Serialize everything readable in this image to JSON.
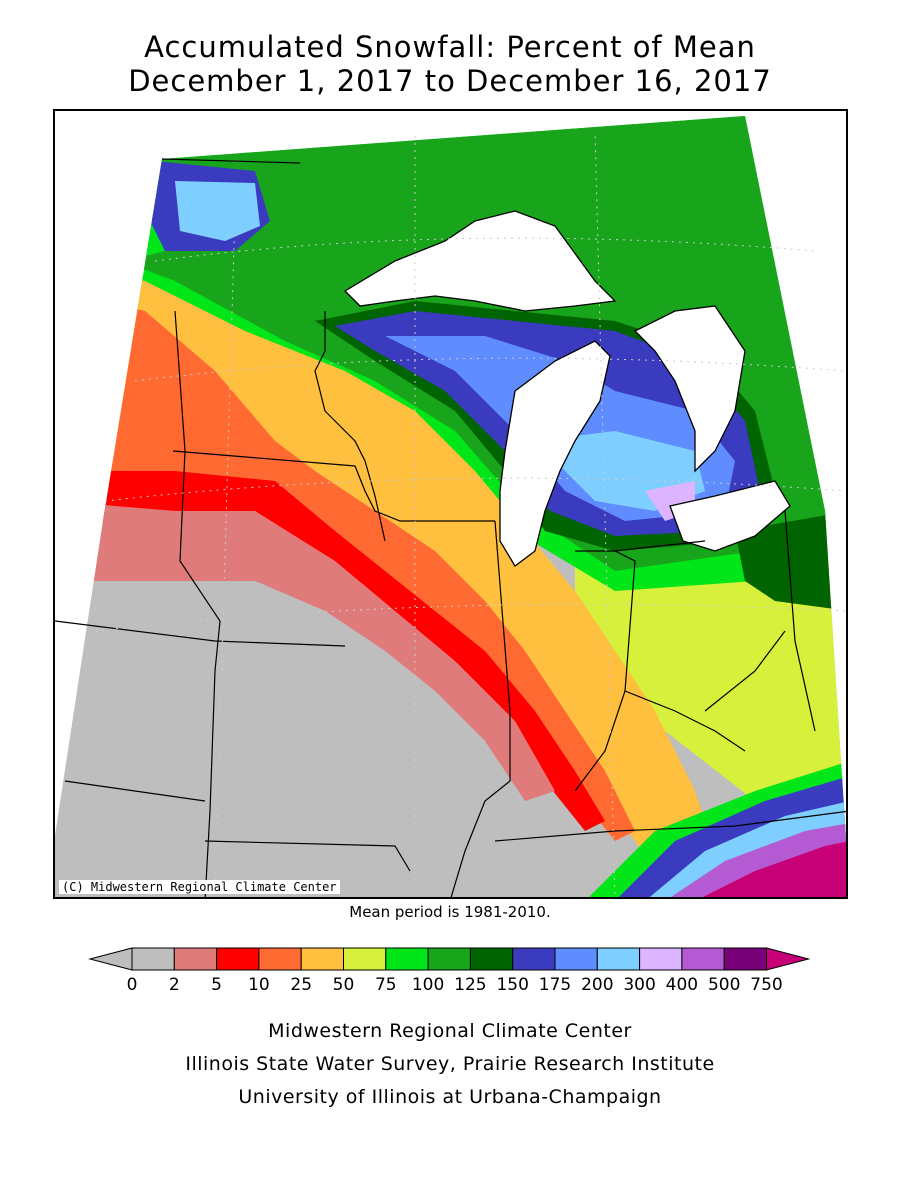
{
  "title": {
    "line1": "Accumulated Snowfall: Percent of Mean",
    "line2": "December 1, 2017 to December 16, 2017"
  },
  "map": {
    "copyright": "(C) Midwestern Regional Climate Center",
    "mean_note": "Mean period is 1981-2010."
  },
  "legend": {
    "bins": [
      {
        "label": "0",
        "color": "#bebebe"
      },
      {
        "label": "2",
        "color": "#e07b7b"
      },
      {
        "label": "5",
        "color": "#ff0000"
      },
      {
        "label": "10",
        "color": "#ff6a33"
      },
      {
        "label": "25",
        "color": "#ffbf3f"
      },
      {
        "label": "50",
        "color": "#d6f03c"
      },
      {
        "label": "75",
        "color": "#00e619"
      },
      {
        "label": "100",
        "color": "#18a51c"
      },
      {
        "label": "125",
        "color": "#006400"
      },
      {
        "label": "150",
        "color": "#3b3bbf"
      },
      {
        "label": "175",
        "color": "#5f8cff"
      },
      {
        "label": "200",
        "color": "#7ecfff"
      },
      {
        "label": "300",
        "color": "#dcb4ff"
      },
      {
        "label": "400",
        "color": "#b45ad2"
      },
      {
        "label": "500",
        "color": "#780078"
      },
      {
        "label": "750",
        "color": "#c80078"
      }
    ]
  },
  "footer": {
    "line1": "Midwestern Regional Climate Center",
    "line2": "Illinois State Water Survey, Prairie Research Institute",
    "line3": "University of Illinois at Urbana-Champaign"
  }
}
